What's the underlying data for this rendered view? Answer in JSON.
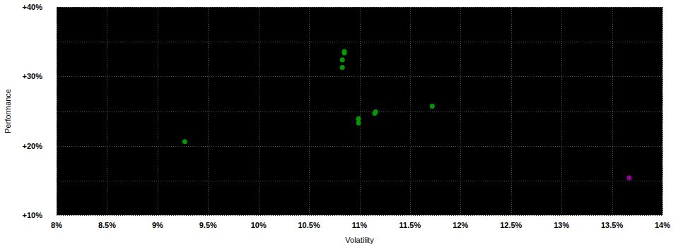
{
  "chart_data": {
    "type": "scatter",
    "x_label": "Volatility",
    "y_label": "Performance",
    "x": [
      9.27,
      10.85,
      10.85,
      10.83,
      10.83,
      10.99,
      10.99,
      11.16,
      11.15,
      11.72,
      13.67
    ],
    "values": [
      20.6,
      33.6,
      33.4,
      32.4,
      31.3,
      23.9,
      23.3,
      24.9,
      24.7,
      25.7,
      15.4
    ],
    "colors": [
      "#009900",
      "#009900",
      "#009900",
      "#009900",
      "#009900",
      "#009900",
      "#009900",
      "#009900",
      "#009900",
      "#009900",
      "#990099"
    ],
    "marker": "circle",
    "xlim": [
      8,
      14
    ],
    "ylim": [
      10,
      40
    ],
    "xticks": [
      {
        "value": 8,
        "label": "8%"
      },
      {
        "value": 8.5,
        "label": "8.5%"
      },
      {
        "value": 9,
        "label": "9%"
      },
      {
        "value": 9.5,
        "label": "9.5%"
      },
      {
        "value": 10,
        "label": "10%"
      },
      {
        "value": 10.5,
        "label": "10.5%"
      },
      {
        "value": 11,
        "label": "11%"
      },
      {
        "value": 11.5,
        "label": "11.5%"
      },
      {
        "value": 12,
        "label": "12%"
      },
      {
        "value": 12.5,
        "label": "12.5%"
      },
      {
        "value": 13,
        "label": "13%"
      },
      {
        "value": 13.5,
        "label": "13.5%"
      },
      {
        "value": 14,
        "label": "14%"
      }
    ],
    "yticks": [
      {
        "value": 10,
        "label": "+10%"
      },
      {
        "value": 20,
        "label": "+20%"
      },
      {
        "value": 30,
        "label": "+30%"
      },
      {
        "value": 40,
        "label": "+40%"
      }
    ],
    "grid": true
  }
}
